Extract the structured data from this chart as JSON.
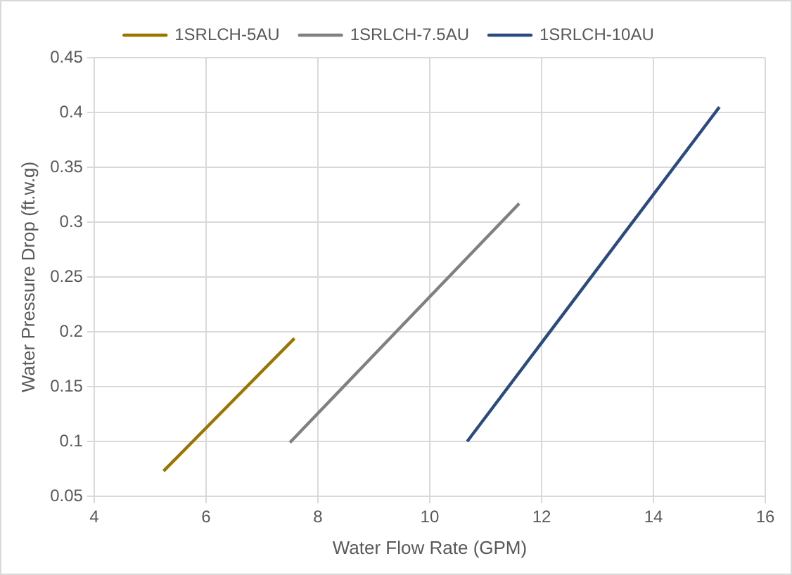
{
  "chart_data": {
    "type": "line",
    "xlabel": "Water Flow Rate (GPM)",
    "ylabel": "Water Pressure Drop (ft.w.g)",
    "series": [
      {
        "name": "1SRLCH-5AU",
        "color": "#9c7400",
        "x": [
          5.24,
          7.58
        ],
        "values": [
          0.073,
          0.194
        ]
      },
      {
        "name": "1SRLCH-7.5AU",
        "color": "#808080",
        "x": [
          7.5,
          11.6
        ],
        "values": [
          0.099,
          0.317
        ]
      },
      {
        "name": "1SRLCH-10AU",
        "color": "#2b4a80",
        "x": [
          10.67,
          15.18
        ],
        "values": [
          0.1,
          0.405
        ]
      }
    ],
    "xlim": [
      4,
      16
    ],
    "xticks": [
      4,
      6,
      8,
      10,
      12,
      14,
      16
    ],
    "ylim": [
      0.05,
      0.45
    ],
    "yticks": [
      0.05,
      0.1,
      0.15,
      0.2,
      0.25,
      0.3,
      0.35,
      0.4,
      0.45
    ],
    "grid": true,
    "legend": "top",
    "marker": "none",
    "line_style": "solid"
  }
}
